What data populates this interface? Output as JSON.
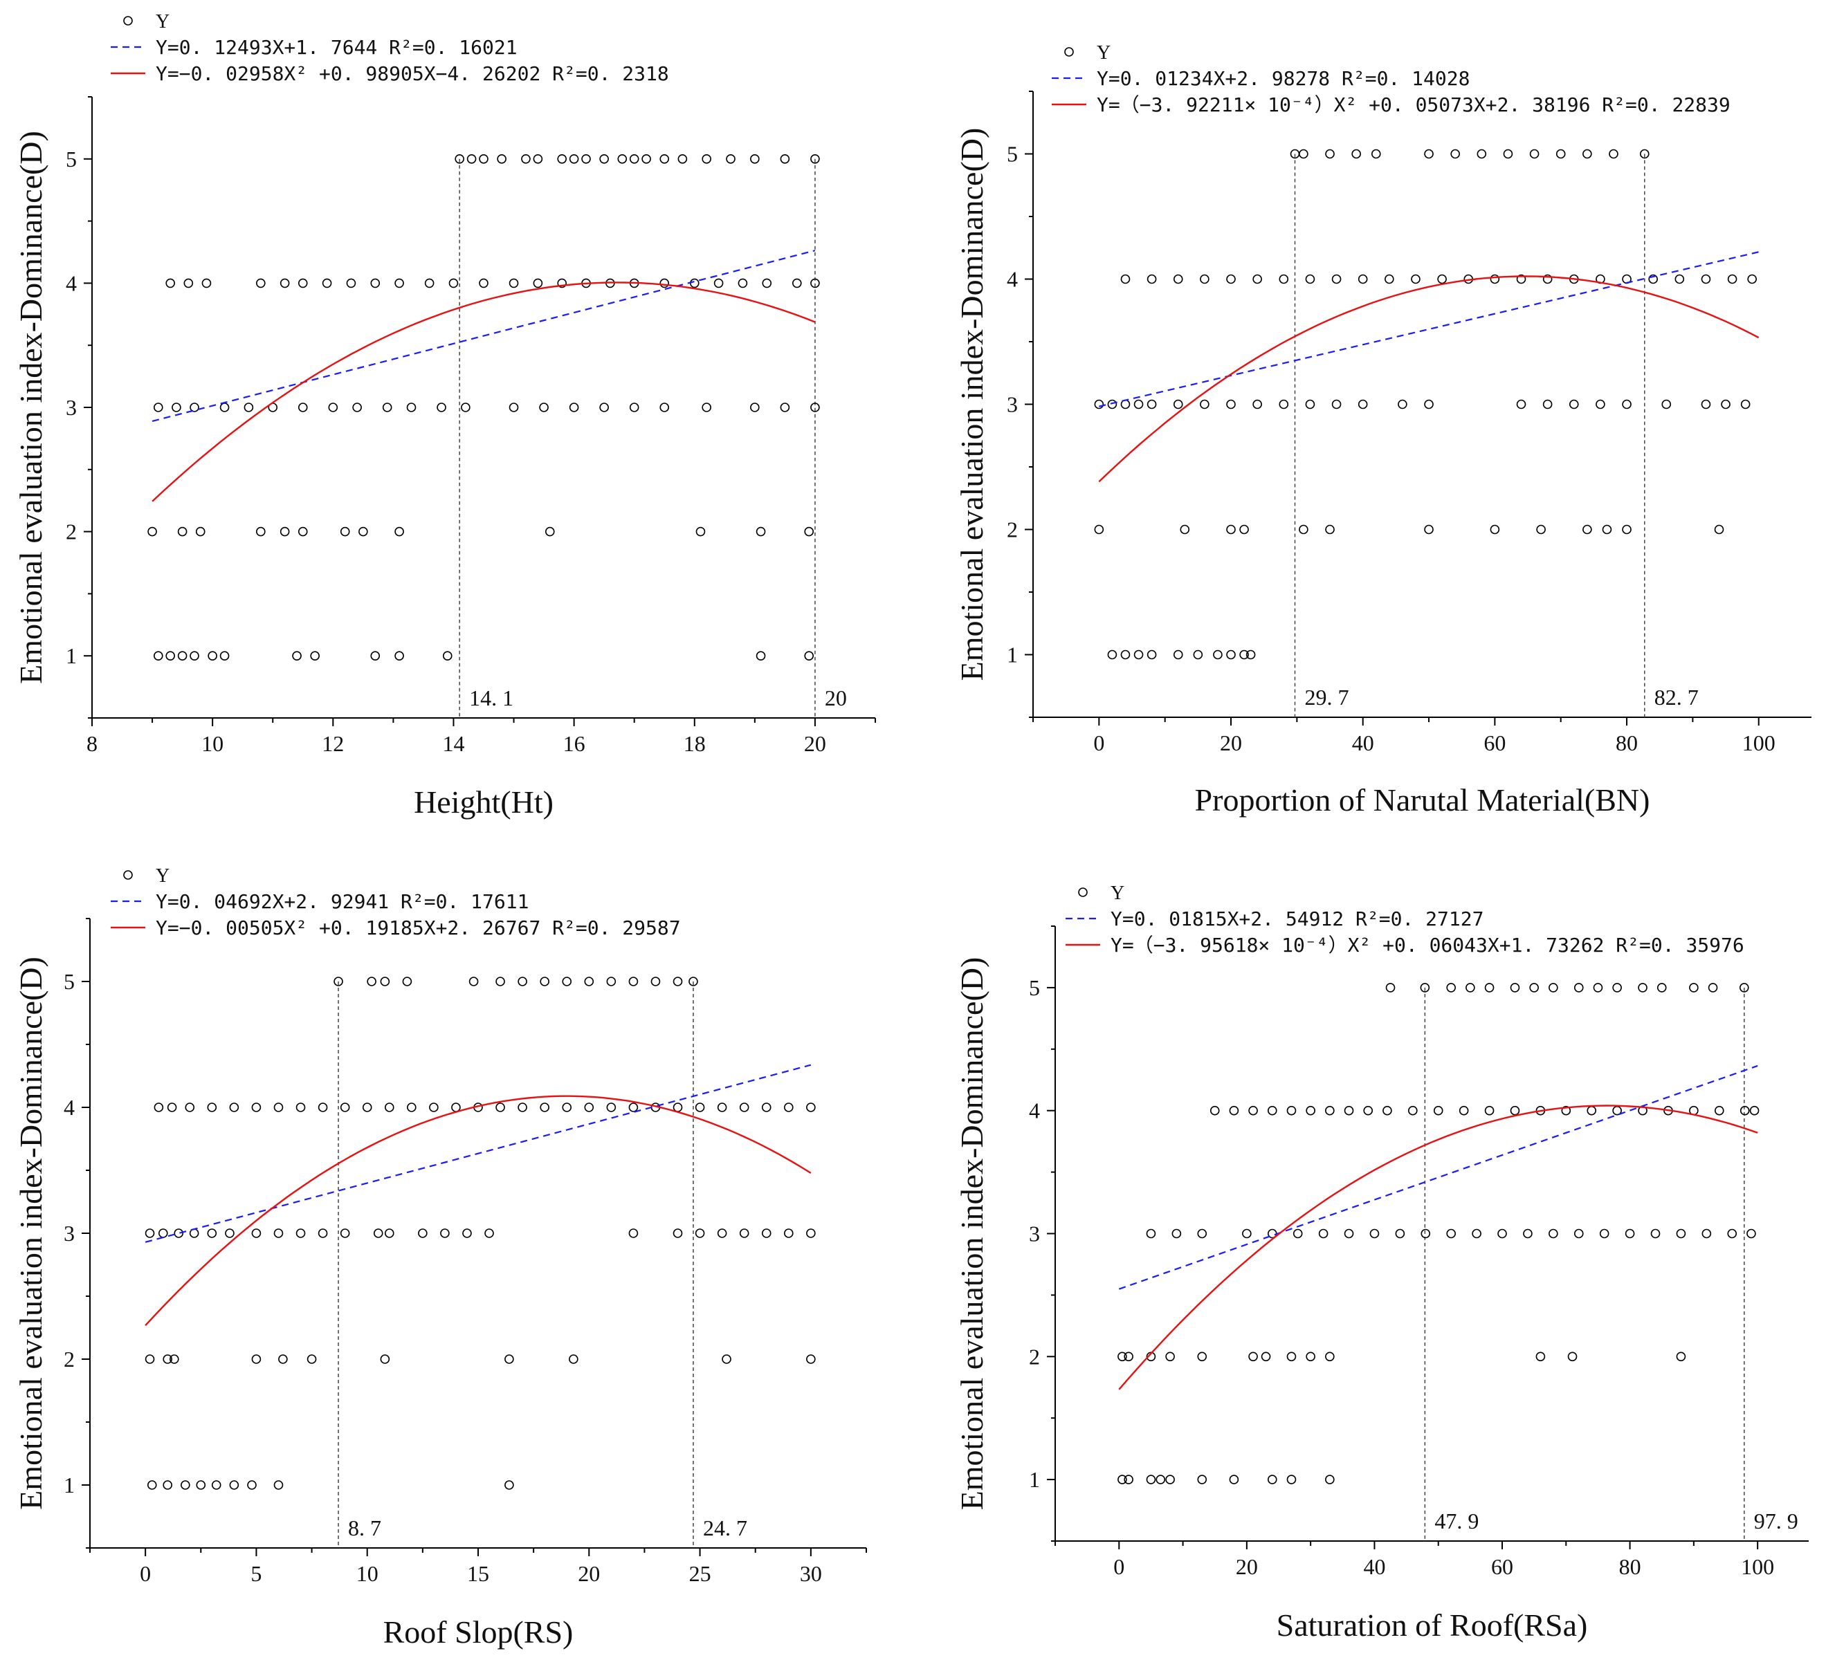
{
  "chart_data": [
    {
      "type": "scatter",
      "xlabel": "Height(Ht)",
      "ylabel": "Emotional evaluation index-Dominance(D)",
      "xlim": [
        8,
        21
      ],
      "ylim": [
        0.5,
        5.5
      ],
      "xticks": [
        8,
        10,
        12,
        14,
        16,
        18,
        20
      ],
      "yticks": [
        1,
        2,
        3,
        4,
        5
      ],
      "legend": {
        "scatter": "Y",
        "linear": "Y=0. 12493X+1. 7644   R²=0. 16021",
        "quadratic": "Y=−0. 02958X² +0. 98905X−4. 26202   R²=0. 2318"
      },
      "linear_fit": {
        "a": 0.12493,
        "b": 1.7644
      },
      "quadratic_fit": {
        "a": -0.02958,
        "b": 0.98905,
        "c": -4.26202
      },
      "fit_range": [
        9,
        20
      ],
      "vlines": [
        {
          "x": 14.1,
          "label": "14. 1"
        },
        {
          "x": 20,
          "label": "20"
        }
      ],
      "points": {
        "5": [
          14.1,
          14.3,
          14.5,
          14.8,
          15.2,
          15.4,
          15.8,
          16.0,
          16.2,
          16.5,
          16.8,
          17.0,
          17.2,
          17.5,
          17.8,
          18.2,
          18.6,
          19.0,
          19.5,
          20.0
        ],
        "4": [
          9.3,
          9.6,
          9.9,
          10.8,
          11.2,
          11.5,
          11.9,
          12.3,
          12.7,
          13.1,
          13.6,
          14.0,
          14.5,
          15.0,
          15.4,
          15.8,
          16.2,
          16.6,
          17.0,
          17.5,
          18.0,
          18.4,
          18.8,
          19.2,
          19.7,
          20.0
        ],
        "3": [
          9.1,
          9.4,
          9.7,
          10.2,
          10.6,
          11.0,
          11.5,
          12.0,
          12.4,
          12.9,
          13.3,
          13.8,
          14.2,
          15.0,
          15.5,
          16.0,
          16.5,
          17.0,
          17.5,
          18.2,
          19.0,
          19.5,
          20.0
        ],
        "2": [
          9.0,
          9.5,
          9.8,
          10.8,
          11.2,
          11.5,
          12.2,
          12.5,
          13.1,
          15.6,
          18.1,
          19.1,
          19.9
        ],
        "1": [
          9.1,
          9.3,
          9.5,
          9.7,
          10.0,
          10.2,
          11.4,
          11.7,
          12.7,
          13.1,
          13.9,
          19.1,
          19.9
        ]
      }
    },
    {
      "type": "scatter",
      "xlabel": "Proportion of Narutal Material(BN)",
      "ylabel": "Emotional evaluation index-Dominance(D)",
      "xlim": [
        -10,
        108
      ],
      "ylim": [
        0.5,
        5.5
      ],
      "xticks": [
        0,
        20,
        40,
        60,
        80,
        100
      ],
      "yticks": [
        1,
        2,
        3,
        4,
        5
      ],
      "legend": {
        "scatter": "Y",
        "linear": "Y=0. 01234X+2. 98278   R²=0. 14028",
        "quadratic": "Y=（−3. 92211× 10⁻⁴）X² +0. 05073X+2. 38196   R²=0. 22839"
      },
      "linear_fit": {
        "a": 0.01234,
        "b": 2.98278
      },
      "quadratic_fit": {
        "a": -0.000392211,
        "b": 0.05073,
        "c": 2.38196
      },
      "fit_range": [
        0,
        100
      ],
      "vlines": [
        {
          "x": 29.7,
          "label": "29. 7"
        },
        {
          "x": 82.7,
          "label": "82. 7"
        }
      ],
      "points": {
        "5": [
          29.7,
          31,
          35,
          39,
          42,
          50,
          54,
          58,
          62,
          66,
          70,
          74,
          78,
          82.7
        ],
        "4": [
          4,
          8,
          12,
          16,
          20,
          24,
          28,
          32,
          36,
          40,
          44,
          48,
          52,
          56,
          60,
          64,
          68,
          72,
          76,
          80,
          84,
          88,
          92,
          96,
          99
        ],
        "3": [
          0,
          2,
          4,
          6,
          8,
          12,
          16,
          20,
          24,
          28,
          32,
          36,
          40,
          46,
          50,
          64,
          68,
          72,
          76,
          80,
          86,
          92,
          95,
          98
        ],
        "2": [
          0,
          13,
          20,
          22,
          31,
          35,
          50,
          60,
          67,
          74,
          77,
          80,
          94
        ],
        "1": [
          2,
          4,
          6,
          8,
          12,
          15,
          18,
          20,
          22,
          23
        ]
      }
    },
    {
      "type": "scatter",
      "xlabel": "Roof Slop(RS)",
      "ylabel": "Emotional evaluation index-Dominance(D)",
      "xlim": [
        -2.5,
        32.5
      ],
      "ylim": [
        0.5,
        5.5
      ],
      "xticks": [
        0,
        5,
        10,
        15,
        20,
        25,
        30
      ],
      "yticks": [
        1,
        2,
        3,
        4,
        5
      ],
      "legend": {
        "scatter": "Y",
        "linear": "Y=0. 04692X+2. 92941   R²=0. 17611",
        "quadratic": "Y=−0. 00505X² +0. 19185X+2. 26767   R²=0. 29587"
      },
      "linear_fit": {
        "a": 0.04692,
        "b": 2.92941
      },
      "quadratic_fit": {
        "a": -0.00505,
        "b": 0.19185,
        "c": 2.26767
      },
      "fit_range": [
        0,
        30
      ],
      "vlines": [
        {
          "x": 8.7,
          "label": "8. 7"
        },
        {
          "x": 24.7,
          "label": "24. 7"
        }
      ],
      "points": {
        "5": [
          8.7,
          10.2,
          10.8,
          11.8,
          14.8,
          16,
          17,
          18,
          19,
          20,
          21,
          22,
          23,
          24,
          24.7
        ],
        "4": [
          0.6,
          1.2,
          2,
          3,
          4,
          5,
          6,
          7,
          8,
          9,
          10,
          11,
          12,
          13,
          14,
          15,
          16,
          17,
          18,
          19,
          20,
          21,
          22,
          23,
          24,
          25,
          26,
          27,
          28,
          29,
          30
        ],
        "3": [
          0.2,
          0.8,
          1.5,
          2.2,
          3,
          3.8,
          5,
          6,
          7,
          8,
          9,
          10.5,
          11,
          12.5,
          13.5,
          14.5,
          15.5,
          22,
          24,
          25,
          26,
          27,
          28,
          29,
          30
        ],
        "2": [
          0.2,
          1,
          1.3,
          5,
          6.2,
          7.5,
          10.8,
          16.4,
          19.3,
          26.2,
          30
        ],
        "1": [
          0.3,
          1,
          1.8,
          2.5,
          3.2,
          4,
          4.8,
          6,
          16.4
        ]
      }
    },
    {
      "type": "scatter",
      "xlabel": "Saturation of Roof(RSa)",
      "ylabel": "Emotional evaluation index-Dominance(D)",
      "xlim": [
        -10,
        108
      ],
      "ylim": [
        0.5,
        5.5
      ],
      "xticks": [
        0,
        20,
        40,
        60,
        80,
        100
      ],
      "yticks": [
        1,
        2,
        3,
        4,
        5
      ],
      "legend": {
        "scatter": "Y",
        "linear": "Y=0. 01815X+2. 54912   R²=0. 27127",
        "quadratic": "Y=（−3. 95618× 10⁻⁴）X² +0. 06043X+1. 73262   R²=0. 35976"
      },
      "linear_fit": {
        "a": 0.01815,
        "b": 2.54912
      },
      "quadratic_fit": {
        "a": -0.000395618,
        "b": 0.06043,
        "c": 1.73262
      },
      "fit_range": [
        0,
        100
      ],
      "vlines": [
        {
          "x": 47.9,
          "label": "47. 9"
        },
        {
          "x": 97.9,
          "label": "97. 9"
        }
      ],
      "points": {
        "5": [
          42.5,
          47.9,
          52,
          55,
          58,
          62,
          65,
          68,
          72,
          75,
          78,
          82,
          85,
          90,
          93,
          97.9
        ],
        "4": [
          15,
          18,
          21,
          24,
          27,
          30,
          33,
          36,
          39,
          42,
          46,
          50,
          54,
          58,
          62,
          66,
          70,
          74,
          78,
          82,
          86,
          90,
          94,
          98,
          99.5
        ],
        "3": [
          5,
          9,
          13,
          20,
          24,
          28,
          32,
          36,
          40,
          44,
          48,
          52,
          56,
          60,
          64,
          68,
          72,
          76,
          80,
          84,
          88,
          92,
          96,
          99
        ],
        "2": [
          0.5,
          1.5,
          5,
          8,
          13,
          21,
          23,
          27,
          30,
          33,
          66,
          71,
          88
        ],
        "1": [
          0.5,
          1.5,
          5,
          6.5,
          8,
          13,
          18,
          24,
          27,
          33
        ]
      }
    }
  ]
}
